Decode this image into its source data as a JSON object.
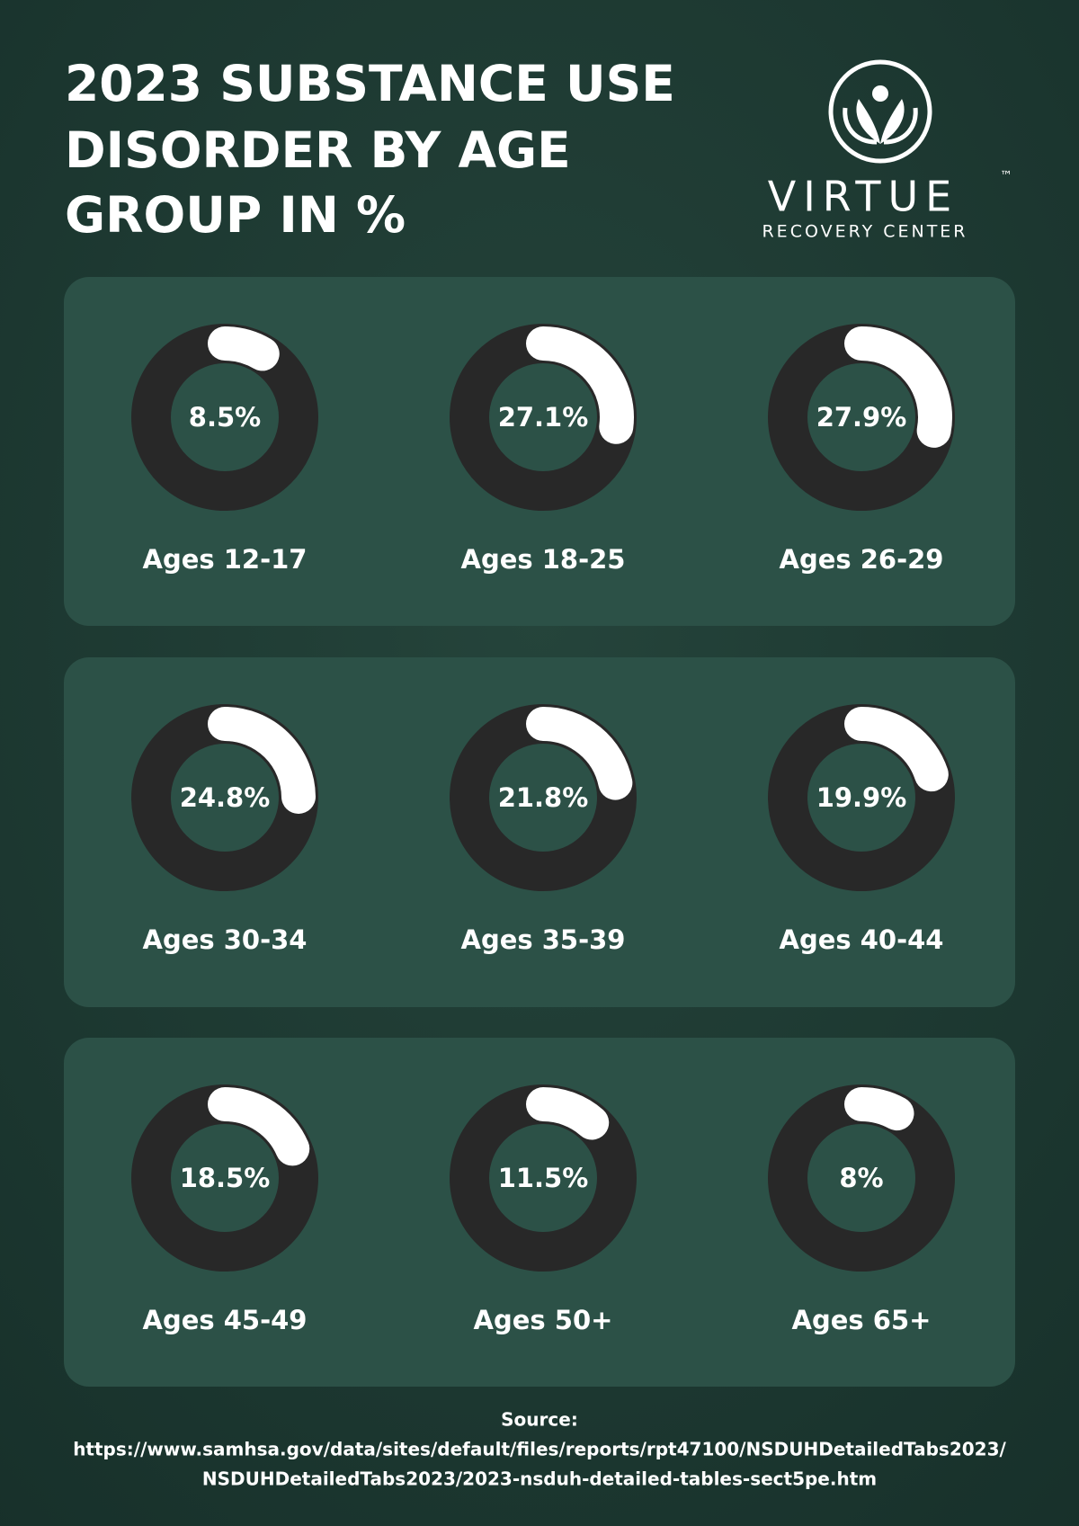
{
  "chart_data": {
    "type": "donut",
    "title": [
      "2023 SUBSTANCE USE",
      "DISORDER BY AGE",
      "GROUP IN %"
    ],
    "categories": [
      "Ages 12-17",
      "Ages 18-25",
      "Ages 26-29",
      "Ages 30-34",
      "Ages 35-39",
      "Ages 40-44",
      "Ages 45-49",
      "Ages 50+",
      "Ages 65+"
    ],
    "values": [
      8.5,
      27.1,
      27.9,
      24.8,
      21.8,
      19.9,
      18.5,
      11.5,
      8
    ],
    "value_labels": [
      "8.5%",
      "27.1%",
      "27.9%",
      "24.8%",
      "21.8%",
      "19.9%",
      "18.5%",
      "11.5%",
      "8%"
    ],
    "ylim": [
      0,
      100
    ],
    "color": "#ffffff",
    "track_color": "#282828"
  },
  "brand": {
    "name": "VIRTUE",
    "mark": "™",
    "tagline": "RECOVERY CENTER"
  },
  "source": {
    "label": "Source:",
    "lines": [
      "https://www.samhsa.gov/data/sites/default/files/reports/rpt47100/NSDUHDetailedTabs2023/",
      "NSDUHDetailedTabs2023/2023-nsduh-detailed-tables-sect5pe.htm"
    ]
  }
}
